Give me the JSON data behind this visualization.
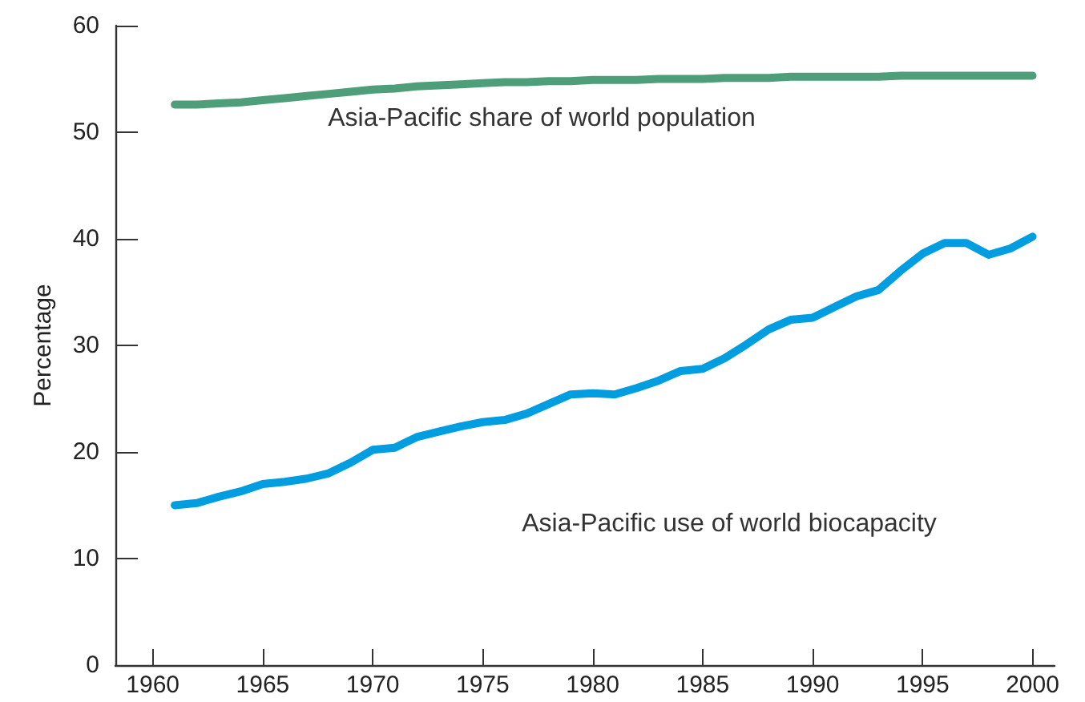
{
  "chart_data": {
    "type": "line",
    "ylabel": "Percentage",
    "x": [
      1961,
      1962,
      1963,
      1964,
      1965,
      1966,
      1967,
      1968,
      1969,
      1970,
      1971,
      1972,
      1973,
      1974,
      1975,
      1976,
      1977,
      1978,
      1979,
      1980,
      1981,
      1982,
      1983,
      1984,
      1985,
      1986,
      1987,
      1988,
      1989,
      1990,
      1991,
      1992,
      1993,
      1994,
      1995,
      1996,
      1997,
      1998,
      1999,
      2000
    ],
    "series": [
      {
        "color": "#4e9e7a",
        "values": [
          52.6,
          52.6,
          52.7,
          52.8,
          53.0,
          53.2,
          53.4,
          53.6,
          53.8,
          54.0,
          54.1,
          54.3,
          54.4,
          54.5,
          54.6,
          54.7,
          54.7,
          54.8,
          54.8,
          54.9,
          54.9,
          54.9,
          55.0,
          55.0,
          55.0,
          55.1,
          55.1,
          55.1,
          55.2,
          55.2,
          55.2,
          55.2,
          55.2,
          55.3,
          55.3,
          55.3,
          55.3,
          55.3,
          55.3,
          55.3
        ]
      },
      {
        "color": "#009ee0",
        "values": [
          15.0,
          15.2,
          15.8,
          16.3,
          17.0,
          17.2,
          17.5,
          18.0,
          19.0,
          20.2,
          20.4,
          21.4,
          21.9,
          22.4,
          22.8,
          23.0,
          23.6,
          24.5,
          25.4,
          25.5,
          25.4,
          26.0,
          26.7,
          27.6,
          27.8,
          28.8,
          30.1,
          31.5,
          32.4,
          32.6,
          33.6,
          34.6,
          35.2,
          37.0,
          38.6,
          39.6,
          39.6,
          38.5,
          39.1,
          40.2
        ]
      }
    ],
    "annotations": [
      "Asia-Pacific share of world population",
      "Asia-Pacific use of world biocapacity"
    ],
    "xlim": [
      1958.3,
      2001
    ],
    "xticks": [
      1960,
      1965,
      1970,
      1975,
      1980,
      1985,
      1990,
      1995,
      2000
    ],
    "ylim": [
      0,
      60
    ],
    "yticks": [
      0,
      10,
      20,
      30,
      40,
      50,
      60
    ],
    "marker": "none",
    "line_style": "solid"
  }
}
